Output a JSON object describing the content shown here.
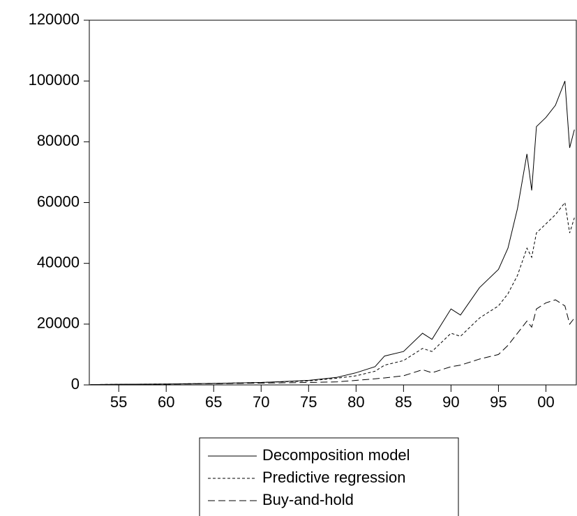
{
  "chart_data": {
    "type": "line",
    "x": [
      1952,
      1955,
      1960,
      1965,
      1970,
      1975,
      1978,
      1980,
      1982,
      1983,
      1985,
      1987,
      1988,
      1990,
      1991,
      1993,
      1995,
      1996,
      1997,
      1998,
      1998.5,
      1999,
      2000,
      2001,
      2002,
      2002.5,
      2003
    ],
    "series": [
      {
        "name": "Decomposition model",
        "color": "#000000",
        "style": "solid",
        "values": [
          100,
          200,
          300,
          500,
          800,
          1500,
          2500,
          4000,
          6000,
          9500,
          11000,
          17000,
          15000,
          25000,
          23000,
          32000,
          38000,
          45000,
          58000,
          76000,
          64000,
          85000,
          88000,
          92000,
          100000,
          78000,
          84000
        ]
      },
      {
        "name": "Predictive regression",
        "color": "#000000",
        "style": "dotted",
        "values": [
          100,
          200,
          300,
          500,
          800,
          1300,
          2200,
          3000,
          4500,
          6500,
          8000,
          12000,
          11000,
          17000,
          16000,
          22000,
          26000,
          30000,
          36000,
          45000,
          42000,
          50000,
          53000,
          56000,
          60000,
          50000,
          55000
        ]
      },
      {
        "name": "Buy-and-hold",
        "color": "#000000",
        "style": "dashed",
        "values": [
          100,
          150,
          250,
          400,
          600,
          800,
          1000,
          1500,
          2000,
          2300,
          3000,
          5000,
          4000,
          6000,
          6500,
          8500,
          10000,
          13000,
          17000,
          21000,
          19000,
          25000,
          27000,
          28000,
          26000,
          20000,
          22000
        ]
      }
    ],
    "xlim": [
      1951.9,
      2003.2
    ],
    "xticks": [
      {
        "value": 1955,
        "label": "55"
      },
      {
        "value": 1960,
        "label": "60"
      },
      {
        "value": 1965,
        "label": "65"
      },
      {
        "value": 1970,
        "label": "70"
      },
      {
        "value": 1975,
        "label": "75"
      },
      {
        "value": 1980,
        "label": "80"
      },
      {
        "value": 1985,
        "label": "85"
      },
      {
        "value": 1990,
        "label": "90"
      },
      {
        "value": 1995,
        "label": "95"
      },
      {
        "value": 2000,
        "label": "00"
      }
    ],
    "ylim": [
      0,
      120000
    ],
    "yticks": [
      0,
      20000,
      40000,
      60000,
      80000,
      100000,
      120000
    ],
    "grid": false
  }
}
